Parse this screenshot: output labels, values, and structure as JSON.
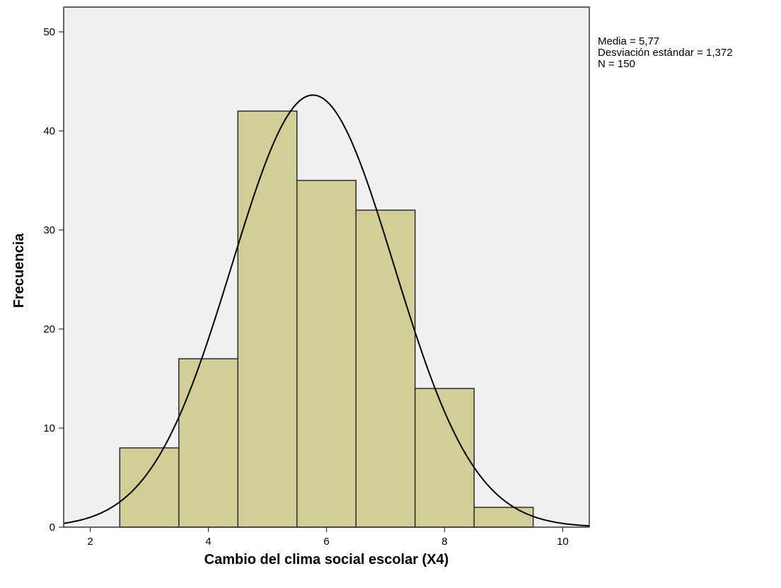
{
  "chart_data": {
    "type": "bar",
    "subtype": "histogram",
    "title": "",
    "xlabel": "Cambio del clima social escolar (X4)",
    "ylabel": "Frecuencia",
    "xlim": [
      1.55,
      10.45
    ],
    "ylim": [
      0,
      52.5
    ],
    "x_ticks": [
      2,
      4,
      6,
      8,
      10
    ],
    "y_ticks": [
      0,
      10,
      20,
      30,
      40,
      50
    ],
    "bin_width": 1,
    "bins": [
      {
        "center": 3,
        "count": 8
      },
      {
        "center": 4,
        "count": 17
      },
      {
        "center": 5,
        "count": 42
      },
      {
        "center": 6,
        "count": 35
      },
      {
        "center": 7,
        "count": 32
      },
      {
        "center": 8,
        "count": 14
      },
      {
        "center": 9,
        "count": 2
      }
    ],
    "normal_curve": {
      "mean": 5.77,
      "sd": 1.372,
      "n": 150
    },
    "stats_lines": [
      "Media = 5,77",
      "Desviación estándar = 1,372",
      "N = 150"
    ],
    "grid": false,
    "colors": {
      "bar_fill": "#d3ce98",
      "bar_stroke": "#2a2a2a",
      "plot_background": "#f0f0f0",
      "curve": "#000000"
    }
  }
}
